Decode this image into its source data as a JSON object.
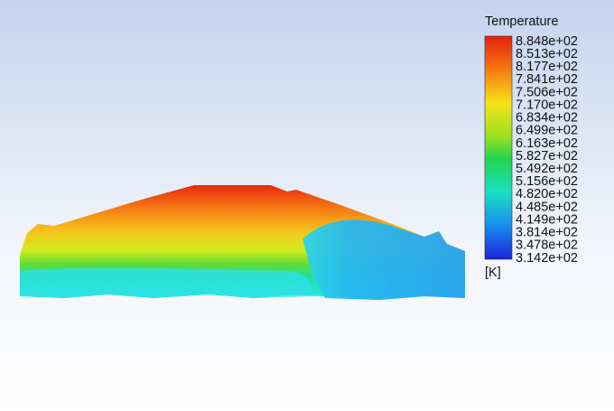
{
  "legend": {
    "title": "Temperature",
    "ticks": [
      "8.848e+02",
      "8.513e+02",
      "8.177e+02",
      "7.841e+02",
      "7.506e+02",
      "7.170e+02",
      "6.834e+02",
      "6.499e+02",
      "6.163e+02",
      "5.827e+02",
      "5.492e+02",
      "5.156e+02",
      "4.820e+02",
      "4.485e+02",
      "4.149e+02",
      "3.814e+02",
      "3.478e+02",
      "3.142e+02"
    ],
    "unit": "[K]"
  }
}
